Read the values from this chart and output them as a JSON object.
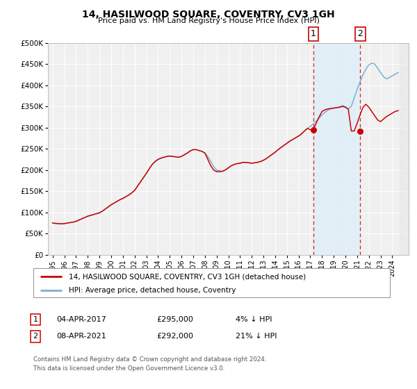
{
  "title": "14, HASILWOOD SQUARE, COVENTRY, CV3 1GH",
  "subtitle": "Price paid vs. HM Land Registry's House Price Index (HPI)",
  "bg_color": "#ffffff",
  "plot_bg_color": "#f0f0f0",
  "grid_color": "#ffffff",
  "hpi_color": "#7bafd4",
  "price_color": "#cc0000",
  "ylim": [
    0,
    500000
  ],
  "yticks": [
    0,
    50000,
    100000,
    150000,
    200000,
    250000,
    300000,
    350000,
    400000,
    450000,
    500000
  ],
  "ytick_labels": [
    "£0",
    "£50K",
    "£100K",
    "£150K",
    "£200K",
    "£250K",
    "£300K",
    "£350K",
    "£400K",
    "£450K",
    "£500K"
  ],
  "xlim_start": 1994.6,
  "xlim_end": 2025.4,
  "xlabel_years": [
    1995,
    1996,
    1997,
    1998,
    1999,
    2000,
    2001,
    2002,
    2003,
    2004,
    2005,
    2006,
    2007,
    2008,
    2009,
    2010,
    2011,
    2012,
    2013,
    2014,
    2015,
    2016,
    2017,
    2018,
    2019,
    2020,
    2021,
    2022,
    2023,
    2024
  ],
  "transaction1_x": 2017.27,
  "transaction1_y": 295000,
  "transaction1_label": "1",
  "transaction1_date": "04-APR-2017",
  "transaction1_price": "£295,000",
  "transaction1_hpi": "4% ↓ HPI",
  "transaction2_x": 2021.27,
  "transaction2_y": 292000,
  "transaction2_label": "2",
  "transaction2_date": "08-APR-2021",
  "transaction2_price": "£292,000",
  "transaction2_hpi": "21% ↓ HPI",
  "legend_label1": "14, HASILWOOD SQUARE, COVENTRY, CV3 1GH (detached house)",
  "legend_label2": "HPI: Average price, detached house, Coventry",
  "footer1": "Contains HM Land Registry data © Crown copyright and database right 2024.",
  "footer2": "This data is licensed under the Open Government Licence v3.0.",
  "hpi_data_x": [
    1995.0,
    1995.25,
    1995.5,
    1995.75,
    1996.0,
    1996.25,
    1996.5,
    1996.75,
    1997.0,
    1997.25,
    1997.5,
    1997.75,
    1998.0,
    1998.25,
    1998.5,
    1998.75,
    1999.0,
    1999.25,
    1999.5,
    1999.75,
    2000.0,
    2000.25,
    2000.5,
    2000.75,
    2001.0,
    2001.25,
    2001.5,
    2001.75,
    2002.0,
    2002.25,
    2002.5,
    2002.75,
    2003.0,
    2003.25,
    2003.5,
    2003.75,
    2004.0,
    2004.25,
    2004.5,
    2004.75,
    2005.0,
    2005.25,
    2005.5,
    2005.75,
    2006.0,
    2006.25,
    2006.5,
    2006.75,
    2007.0,
    2007.25,
    2007.5,
    2007.75,
    2008.0,
    2008.25,
    2008.5,
    2008.75,
    2009.0,
    2009.25,
    2009.5,
    2009.75,
    2010.0,
    2010.25,
    2010.5,
    2010.75,
    2011.0,
    2011.25,
    2011.5,
    2011.75,
    2012.0,
    2012.25,
    2012.5,
    2012.75,
    2013.0,
    2013.25,
    2013.5,
    2013.75,
    2014.0,
    2014.25,
    2014.5,
    2014.75,
    2015.0,
    2015.25,
    2015.5,
    2015.75,
    2016.0,
    2016.25,
    2016.5,
    2016.75,
    2017.0,
    2017.25,
    2017.5,
    2017.75,
    2018.0,
    2018.25,
    2018.5,
    2018.75,
    2019.0,
    2019.25,
    2019.5,
    2019.75,
    2020.0,
    2020.25,
    2020.5,
    2020.75,
    2021.0,
    2021.25,
    2021.5,
    2021.75,
    2022.0,
    2022.25,
    2022.5,
    2022.75,
    2023.0,
    2023.25,
    2023.5,
    2023.75,
    2024.0,
    2024.25,
    2024.5
  ],
  "hpi_data_y": [
    75000,
    74000,
    73500,
    73000,
    73500,
    75000,
    76000,
    77000,
    79000,
    82000,
    85000,
    88000,
    91000,
    93000,
    95000,
    97000,
    99000,
    103000,
    108000,
    113000,
    118000,
    122000,
    126000,
    130000,
    133000,
    137000,
    141000,
    146000,
    152000,
    162000,
    172000,
    182000,
    192000,
    203000,
    213000,
    220000,
    225000,
    228000,
    230000,
    232000,
    233000,
    232000,
    231000,
    230000,
    232000,
    236000,
    240000,
    245000,
    248000,
    248000,
    246000,
    244000,
    240000,
    232000,
    220000,
    208000,
    200000,
    198000,
    197000,
    200000,
    205000,
    210000,
    213000,
    215000,
    216000,
    218000,
    218000,
    217000,
    216000,
    217000,
    218000,
    220000,
    223000,
    227000,
    232000,
    237000,
    242000,
    248000,
    253000,
    258000,
    263000,
    268000,
    272000,
    276000,
    280000,
    285000,
    292000,
    298000,
    303000,
    308000,
    315000,
    322000,
    330000,
    336000,
    341000,
    344000,
    346000,
    347000,
    349000,
    352000,
    349000,
    344000,
    350000,
    370000,
    390000,
    408000,
    425000,
    438000,
    448000,
    452000,
    450000,
    440000,
    430000,
    420000,
    415000,
    418000,
    422000,
    426000,
    430000
  ],
  "price_data_x": [
    1995.0,
    1995.25,
    1995.5,
    1995.75,
    1996.0,
    1996.25,
    1996.5,
    1996.75,
    1997.0,
    1997.25,
    1997.5,
    1997.75,
    1998.0,
    1998.25,
    1998.5,
    1998.75,
    1999.0,
    1999.25,
    1999.5,
    1999.75,
    2000.0,
    2000.25,
    2000.5,
    2000.75,
    2001.0,
    2001.25,
    2001.5,
    2001.75,
    2002.0,
    2002.25,
    2002.5,
    2002.75,
    2003.0,
    2003.25,
    2003.5,
    2003.75,
    2004.0,
    2004.25,
    2004.5,
    2004.75,
    2005.0,
    2005.25,
    2005.5,
    2005.75,
    2006.0,
    2006.25,
    2006.5,
    2006.75,
    2007.0,
    2007.25,
    2007.5,
    2007.75,
    2008.0,
    2008.25,
    2008.5,
    2008.75,
    2009.0,
    2009.25,
    2009.5,
    2009.75,
    2010.0,
    2010.25,
    2010.5,
    2010.75,
    2011.0,
    2011.25,
    2011.5,
    2011.75,
    2012.0,
    2012.25,
    2012.5,
    2012.75,
    2013.0,
    2013.25,
    2013.5,
    2013.75,
    2014.0,
    2014.25,
    2014.5,
    2014.75,
    2015.0,
    2015.25,
    2015.5,
    2015.75,
    2016.0,
    2016.25,
    2016.5,
    2016.75,
    2017.0,
    2017.25,
    2017.5,
    2017.75,
    2018.0,
    2018.25,
    2018.5,
    2018.75,
    2019.0,
    2019.25,
    2019.5,
    2019.75,
    2020.0,
    2020.25,
    2020.5,
    2020.75,
    2021.0,
    2021.25,
    2021.5,
    2021.75,
    2022.0,
    2022.25,
    2022.5,
    2022.75,
    2023.0,
    2023.25,
    2023.5,
    2023.75,
    2024.0,
    2024.25,
    2024.5
  ],
  "price_data_y": [
    75000,
    74000,
    73500,
    73000,
    73500,
    75000,
    76000,
    77000,
    79000,
    82000,
    85000,
    88000,
    91000,
    93000,
    95000,
    97000,
    99000,
    103000,
    108000,
    113000,
    118000,
    122000,
    126000,
    130000,
    133000,
    137000,
    141000,
    146000,
    152000,
    162000,
    172000,
    182000,
    192000,
    203000,
    213000,
    220000,
    225000,
    228000,
    230000,
    232000,
    233000,
    232000,
    231000,
    230000,
    232000,
    236000,
    240000,
    245000,
    248000,
    248000,
    246000,
    244000,
    240000,
    225000,
    210000,
    200000,
    196000,
    196000,
    197000,
    200000,
    205000,
    210000,
    213000,
    215000,
    216000,
    218000,
    218000,
    217000,
    216000,
    217000,
    218000,
    220000,
    223000,
    227000,
    232000,
    237000,
    242000,
    248000,
    253000,
    258000,
    263000,
    268000,
    272000,
    276000,
    280000,
    285000,
    292000,
    298000,
    295000,
    295000,
    310000,
    325000,
    338000,
    342000,
    344000,
    345000,
    346000,
    347000,
    348000,
    350000,
    348000,
    343000,
    292000,
    292000,
    310000,
    330000,
    348000,
    355000,
    348000,
    338000,
    328000,
    318000,
    314000,
    320000,
    326000,
    330000,
    334000,
    338000,
    340000
  ]
}
